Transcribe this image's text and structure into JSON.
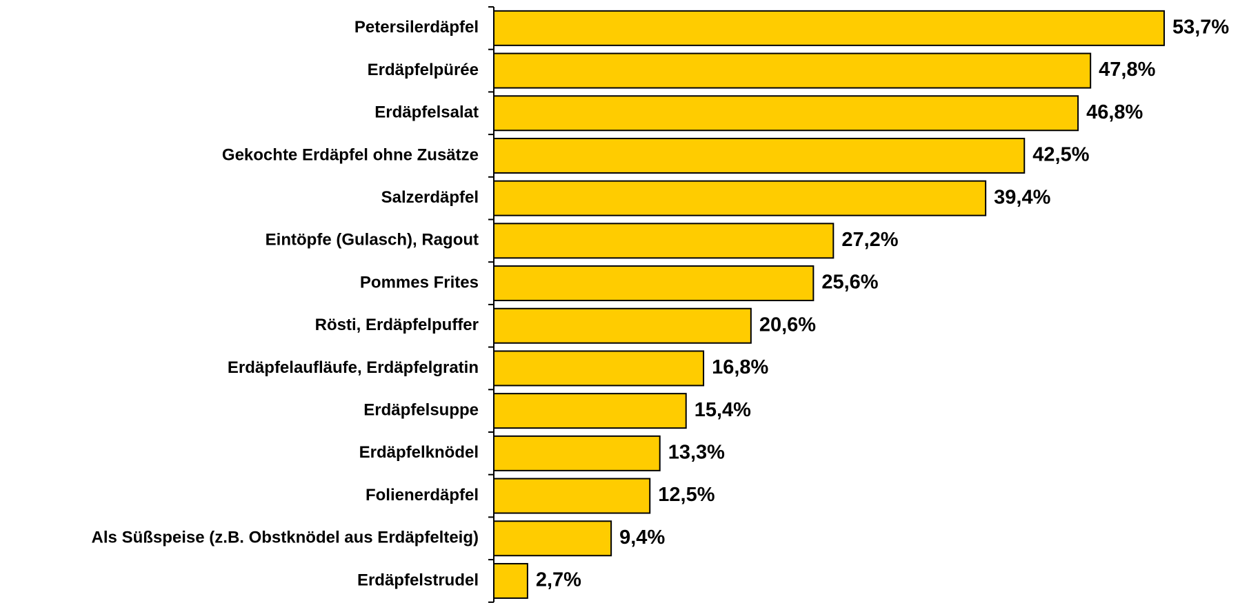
{
  "chart_data": {
    "type": "bar",
    "orientation": "horizontal",
    "color": "#ffcc00",
    "categories": [
      "Petersilerdäpfel",
      "Erdäpfelpürée",
      "Erdäpfelsalat",
      "Gekochte Erdäpfel ohne Zusätze",
      "Salzerdäpfel",
      "Eintöpfe (Gulasch), Ragout",
      "Pommes Frites",
      "Rösti, Erdäpfelpuffer",
      "Erdäpfelaufläufe, Erdäpfelgratin",
      "Erdäpfelsuppe",
      "Erdäpfelknödel",
      "Folienerdäpfel",
      "Als Süßspeise (z.B. Obstknödel aus Erdäpfelteig)",
      "Erdäpfelstrudel"
    ],
    "values": [
      53.7,
      47.8,
      46.8,
      42.5,
      39.4,
      27.2,
      25.6,
      20.6,
      16.8,
      15.4,
      13.3,
      12.5,
      9.4,
      2.7
    ],
    "value_labels": [
      "53,7%",
      "47,8%",
      "46,8%",
      "42,5%",
      "39,4%",
      "27,2%",
      "25,6%",
      "20,6%",
      "16,8%",
      "15,4%",
      "13,3%",
      "12,5%",
      "9,4%",
      "2,7%"
    ]
  }
}
